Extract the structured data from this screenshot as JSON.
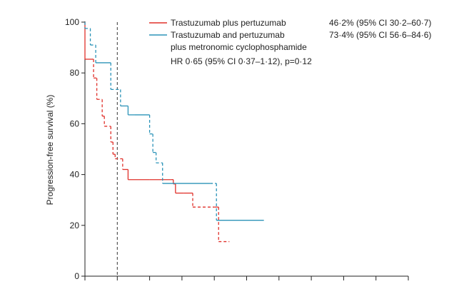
{
  "chart_data": {
    "type": "line",
    "title": "",
    "xlabel": "",
    "ylabel": "Progression-free survival (%)",
    "ylim": [
      0,
      100
    ],
    "xlim": [
      0,
      15
    ],
    "y_ticks": [
      0,
      20,
      40,
      60,
      80,
      100
    ],
    "x_ticks": [
      0,
      1.5,
      3,
      4.5,
      6,
      7.5,
      9,
      10.5,
      12,
      13.5,
      15
    ],
    "x_tick_labels_shown": false,
    "reference_line_x": 1.5,
    "legend_position": "top-right",
    "series": [
      {
        "name": "Trastuzumab plus pertuzumab",
        "stat": "46·2% (95% CI 30·2–60·7)",
        "color": "#e0302a",
        "points": [
          [
            0,
            100
          ],
          [
            0,
            85.4
          ],
          [
            0.4,
            85.4
          ],
          [
            0.4,
            78
          ],
          [
            0.55,
            78
          ],
          [
            0.55,
            69.6
          ],
          [
            0.8,
            69.6
          ],
          [
            0.8,
            63
          ],
          [
            0.9,
            63
          ],
          [
            0.9,
            59
          ],
          [
            1.15,
            59
          ],
          [
            1.15,
            59
          ],
          [
            1.2,
            59
          ],
          [
            1.2,
            52.8
          ],
          [
            1.3,
            52.8
          ],
          [
            1.3,
            48
          ],
          [
            1.4,
            48
          ],
          [
            1.4,
            46.2
          ],
          [
            1.75,
            46.2
          ],
          [
            1.75,
            42
          ],
          [
            2.0,
            42
          ],
          [
            2.0,
            38
          ],
          [
            3.0,
            38
          ],
          [
            3.0,
            38
          ],
          [
            4.0,
            38
          ],
          [
            4.0,
            38
          ],
          [
            4.1,
            38
          ],
          [
            4.1,
            36.3
          ],
          [
            4.2,
            36.3
          ],
          [
            4.2,
            32.7
          ],
          [
            4.6,
            32.7
          ],
          [
            4.6,
            32.7
          ],
          [
            5.0,
            32.7
          ],
          [
            5.0,
            27.2
          ],
          [
            6.0,
            27.2
          ],
          [
            6.0,
            27.2
          ],
          [
            6.1,
            27.2
          ],
          [
            6.1,
            27.2
          ],
          [
            6.2,
            27.2
          ],
          [
            6.2,
            13.6
          ],
          [
            6.7,
            13.6
          ]
        ],
        "dash_ranges": [
          [
            0.4,
            1.75
          ],
          [
            5.0,
            6.7
          ]
        ]
      },
      {
        "name": "Trastuzumab and pertuzumab plus metronomic cyclophosphamide",
        "stat": "73·4% (95% CI 56·6–84·6)",
        "color": "#2b93b8",
        "points": [
          [
            0,
            100
          ],
          [
            0,
            97.5
          ],
          [
            0.25,
            97.5
          ],
          [
            0.25,
            91
          ],
          [
            0.5,
            91
          ],
          [
            0.5,
            84
          ],
          [
            1.2,
            84
          ],
          [
            1.2,
            73.5
          ],
          [
            1.65,
            73.5
          ],
          [
            1.65,
            67
          ],
          [
            2.0,
            67
          ],
          [
            2.0,
            63.5
          ],
          [
            2.3,
            63.5
          ],
          [
            2.3,
            63.5
          ],
          [
            3.0,
            63.5
          ],
          [
            3.0,
            56
          ],
          [
            3.15,
            56
          ],
          [
            3.15,
            48.7
          ],
          [
            3.3,
            48.7
          ],
          [
            3.3,
            44.6
          ],
          [
            3.6,
            44.6
          ],
          [
            3.6,
            36.5
          ],
          [
            5.0,
            36.5
          ],
          [
            5.0,
            36.5
          ],
          [
            5.8,
            36.5
          ],
          [
            5.8,
            36.5
          ],
          [
            6.1,
            36.5
          ],
          [
            6.1,
            22
          ],
          [
            8.3,
            22
          ]
        ],
        "dash_ranges": [
          [
            0,
            0.5
          ],
          [
            1.0,
            1.65
          ],
          [
            2.9,
            3.6
          ],
          [
            5.8,
            6.1
          ]
        ]
      }
    ],
    "annotation": "HR 0·65 (95% CI 0·37–1·12), p=0·12"
  },
  "legend": {
    "items": [
      {
        "label": "Trastuzumab plus pertuzumab",
        "stat": "46·2% (95% CI 30·2–60·7)"
      },
      {
        "label": "Trastuzumab and pertuzumab",
        "label_line2": "plus metronomic cyclophosphamide",
        "stat": "73·4% (95% CI 56·6–84·6)"
      }
    ],
    "hr_text": "HR 0·65 (95% CI 0·37–1·12), p=0·12"
  },
  "y_tick_labels": [
    "0",
    "20",
    "40",
    "60",
    "80",
    "100"
  ]
}
